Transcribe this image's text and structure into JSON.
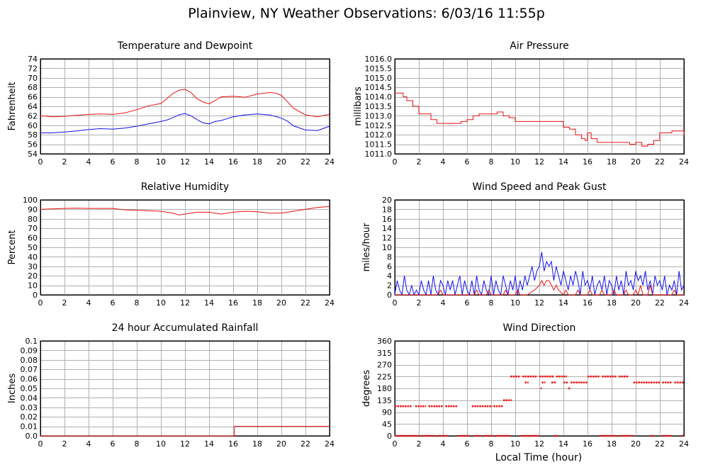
{
  "page_title": "Plainview, NY Weather Observations: 6/03/16 11:55p",
  "x_axis_label": "Local Time (hour)",
  "colors": {
    "red": "#ee1111",
    "blue": "#1111ee",
    "grid": "#b0b0b0"
  },
  "chart_data": [
    {
      "id": "temp",
      "type": "line",
      "title": "Temperature and Dewpoint",
      "ylabel": "Fahrenheit",
      "xlim": [
        0,
        24
      ],
      "ylim": [
        54,
        74
      ],
      "xticks": [
        0,
        2,
        4,
        6,
        8,
        10,
        12,
        14,
        16,
        18,
        20,
        22,
        24
      ],
      "yticks": [
        54,
        56,
        58,
        60,
        62,
        64,
        66,
        68,
        70,
        72,
        74
      ],
      "grid": true,
      "series": [
        {
          "color": "#ee1111",
          "style": "line",
          "x": [
            0,
            1,
            2,
            3,
            4,
            5,
            6,
            7,
            8,
            9,
            10,
            10.5,
            11,
            11.5,
            12,
            12.5,
            13,
            13.5,
            14,
            14.5,
            15,
            16,
            17,
            18,
            19,
            19.5,
            20,
            20.5,
            21,
            22,
            23,
            24
          ],
          "y": [
            62,
            61.8,
            61.9,
            62.1,
            62.3,
            62.4,
            62.3,
            62.6,
            63.3,
            64.1,
            64.6,
            65.6,
            66.7,
            67.4,
            67.6,
            66.9,
            65.6,
            64.9,
            64.5,
            65.2,
            66,
            66.1,
            65.9,
            66.6,
            66.9,
            66.8,
            66.3,
            65,
            63.6,
            62.2,
            61.8,
            62.3
          ]
        },
        {
          "color": "#1111ee",
          "style": "line",
          "x": [
            0,
            1,
            2,
            3,
            4,
            5,
            6,
            7,
            8,
            9,
            10,
            10.5,
            11,
            11.5,
            12,
            12.5,
            13,
            13.5,
            14,
            14.5,
            15,
            16,
            17,
            18,
            19,
            19.5,
            20,
            20.5,
            21,
            22,
            23,
            24
          ],
          "y": [
            58.4,
            58.4,
            58.6,
            58.8,
            59.1,
            59.3,
            59.2,
            59.4,
            59.8,
            60.3,
            60.8,
            61.1,
            61.6,
            62.2,
            62.5,
            62,
            61.2,
            60.5,
            60.3,
            60.8,
            61,
            61.8,
            62.2,
            62.4,
            62.2,
            61.9,
            61.5,
            60.9,
            59.9,
            59,
            58.9,
            59.8
          ]
        }
      ]
    },
    {
      "id": "pressure",
      "type": "line",
      "title": "Air Pressure",
      "ylabel": "millibars",
      "xlim": [
        0,
        24
      ],
      "ylim": [
        1011.0,
        1016.0
      ],
      "xticks": [
        0,
        2,
        4,
        6,
        8,
        10,
        12,
        14,
        16,
        18,
        20,
        22,
        24
      ],
      "yticks": [
        1011.0,
        1011.5,
        1012.0,
        1012.5,
        1013.0,
        1013.5,
        1014.0,
        1014.5,
        1015.0,
        1015.5,
        1016.0
      ],
      "ytick_labels": [
        "1011.0",
        "1011.5",
        "1012.0",
        "1012.5",
        "1013.0",
        "1013.5",
        "1014.0",
        "1014.5",
        "1015.0",
        "1015.5",
        "1016.0"
      ],
      "grid": true,
      "series": [
        {
          "color": "#ee1111",
          "style": "step",
          "x": [
            0,
            0.7,
            1,
            1.5,
            2,
            3,
            3.5,
            5,
            5.5,
            6,
            6.5,
            7,
            8,
            8.5,
            9,
            9.5,
            10,
            11,
            11.5,
            12,
            14,
            14.5,
            15,
            15.5,
            15.8,
            16,
            16.3,
            16.8,
            19,
            19.5,
            20,
            20.5,
            21,
            21.5,
            22,
            23,
            24
          ],
          "y": [
            1014.2,
            1014.0,
            1013.8,
            1013.5,
            1013.1,
            1012.8,
            1012.6,
            1012.6,
            1012.7,
            1012.8,
            1013.0,
            1013.1,
            1013.1,
            1013.2,
            1013.0,
            1012.9,
            1012.7,
            1012.7,
            1012.7,
            1012.7,
            1012.4,
            1012.3,
            1012.0,
            1011.8,
            1011.7,
            1012.1,
            1011.8,
            1011.6,
            1011.6,
            1011.5,
            1011.6,
            1011.4,
            1011.5,
            1011.7,
            1012.1,
            1012.2,
            1012.0
          ]
        }
      ]
    },
    {
      "id": "humidity",
      "type": "line",
      "title": "Relative Humidity",
      "ylabel": "Percent",
      "xlim": [
        0,
        24
      ],
      "ylim": [
        0,
        100
      ],
      "xticks": [
        0,
        2,
        4,
        6,
        8,
        10,
        12,
        14,
        16,
        18,
        20,
        22,
        24
      ],
      "yticks": [
        0,
        10,
        20,
        30,
        40,
        50,
        60,
        70,
        80,
        90,
        100
      ],
      "grid": true,
      "series": [
        {
          "color": "#ee1111",
          "style": "line",
          "x": [
            0,
            1,
            2,
            3,
            4,
            5,
            6,
            7,
            8,
            9,
            10,
            11,
            11.5,
            12,
            13,
            14,
            15,
            16,
            17,
            18,
            19,
            20,
            21,
            22,
            23,
            24
          ],
          "y": [
            90,
            90.5,
            91,
            91.2,
            91,
            91,
            91,
            89.5,
            89,
            88.5,
            88,
            86,
            84,
            85,
            87,
            87,
            85,
            87,
            88,
            87.5,
            86,
            86,
            88,
            90,
            92,
            93
          ]
        }
      ]
    },
    {
      "id": "wind",
      "type": "line",
      "title": "Wind Speed and Peak Gust",
      "ylabel": "miles/hour",
      "xlim": [
        0,
        24
      ],
      "ylim": [
        0,
        20
      ],
      "xticks": [
        0,
        2,
        4,
        6,
        8,
        10,
        12,
        14,
        16,
        18,
        20,
        22,
        24
      ],
      "yticks": [
        0,
        2,
        4,
        6,
        8,
        10,
        12,
        14,
        16,
        18,
        20
      ],
      "grid": true,
      "series": [
        {
          "color": "#1111ee",
          "style": "line",
          "x": [
            0,
            0.2,
            0.4,
            0.6,
            0.8,
            1,
            1.2,
            1.4,
            1.6,
            1.8,
            2,
            2.2,
            2.4,
            2.6,
            2.8,
            3,
            3.2,
            3.4,
            3.6,
            3.8,
            4,
            4.2,
            4.4,
            4.6,
            4.8,
            5,
            5.2,
            5.4,
            5.6,
            5.8,
            6,
            6.2,
            6.4,
            6.6,
            6.8,
            7,
            7.2,
            7.4,
            7.6,
            7.8,
            8,
            8.2,
            8.4,
            8.6,
            8.8,
            9,
            9.2,
            9.4,
            9.6,
            9.8,
            10,
            10.2,
            10.4,
            10.6,
            10.8,
            11,
            11.2,
            11.4,
            11.6,
            11.8,
            12,
            12.2,
            12.4,
            12.6,
            12.8,
            13,
            13.2,
            13.4,
            13.6,
            13.8,
            14,
            14.2,
            14.4,
            14.6,
            14.8,
            15,
            15.2,
            15.4,
            15.6,
            15.8,
            16,
            16.2,
            16.4,
            16.6,
            16.8,
            17,
            17.2,
            17.4,
            17.6,
            17.8,
            18,
            18.2,
            18.4,
            18.6,
            18.8,
            19,
            19.2,
            19.4,
            19.6,
            19.8,
            20,
            20.2,
            20.4,
            20.6,
            20.8,
            21,
            21.2,
            21.4,
            21.6,
            21.8,
            22,
            22.2,
            22.4,
            22.6,
            22.8,
            23,
            23.2,
            23.4,
            23.6,
            23.8,
            24
          ],
          "y": [
            0,
            3,
            1,
            0,
            4,
            1,
            0,
            2,
            0,
            1,
            0,
            3,
            1,
            0,
            3,
            0,
            4,
            1,
            0,
            3,
            2,
            0,
            3,
            1,
            3,
            0,
            2,
            4,
            0,
            3,
            1,
            0,
            3,
            0,
            4,
            1,
            0,
            3,
            1,
            0,
            4,
            0,
            3,
            1,
            0,
            4,
            2,
            0,
            3,
            1,
            4,
            0,
            3,
            1,
            4,
            2,
            4,
            6,
            3,
            5,
            6,
            9,
            5,
            7,
            6,
            7,
            3,
            6,
            4,
            2,
            5,
            3,
            1,
            4,
            2,
            5,
            3,
            0,
            5,
            2,
            3,
            1,
            4,
            0,
            2,
            3,
            1,
            4,
            0,
            3,
            2,
            0,
            4,
            1,
            3,
            0,
            5,
            2,
            3,
            1,
            5,
            3,
            4,
            2,
            5,
            1,
            3,
            0,
            4,
            2,
            3,
            1,
            4,
            0,
            2,
            1,
            3,
            0,
            5,
            1,
            2
          ]
        },
        {
          "color": "#ee1111",
          "style": "line",
          "x": [
            0,
            0.5,
            1,
            2,
            3,
            3.6,
            3.8,
            4,
            5,
            6,
            6.6,
            6.8,
            7,
            7.6,
            7.8,
            8,
            9,
            9.2,
            9.4,
            10,
            10.2,
            10.4,
            11,
            11.6,
            12,
            12.2,
            12.4,
            12.6,
            12.8,
            13,
            13.2,
            13.4,
            13.6,
            14,
            14.2,
            14.4,
            14.6,
            15,
            15.2,
            15.4,
            16,
            16.2,
            16.4,
            17,
            17.2,
            17.4,
            18,
            18.2,
            18.4,
            19,
            19.2,
            19.4,
            19.8,
            20,
            20.2,
            20.4,
            20.6,
            21,
            21.2,
            21.4,
            22,
            23,
            23.2,
            23.4,
            24
          ],
          "y": [
            0,
            0,
            0,
            0,
            0,
            0,
            1,
            0,
            0,
            0,
            0,
            1,
            0,
            0,
            1,
            0,
            0,
            1,
            0,
            0,
            1,
            0,
            0,
            1,
            2,
            3,
            2,
            3,
            3,
            2,
            1,
            2,
            1,
            0,
            1,
            0,
            0,
            0,
            1,
            0,
            0,
            1,
            0,
            0,
            1,
            0,
            0,
            1,
            0,
            0,
            1,
            0,
            0,
            1,
            0,
            2,
            0,
            0,
            2,
            0,
            0,
            0,
            1,
            0,
            0
          ]
        }
      ]
    },
    {
      "id": "rain",
      "type": "line",
      "title": "24 hour Accumulated Rainfall",
      "ylabel": "Inches",
      "xlim": [
        0,
        24
      ],
      "ylim": [
        0,
        0.1
      ],
      "xticks": [
        0,
        2,
        4,
        6,
        8,
        10,
        12,
        14,
        16,
        18,
        20,
        22,
        24
      ],
      "yticks": [
        0,
        0.01,
        0.02,
        0.03,
        0.04,
        0.05,
        0.06,
        0.07,
        0.08,
        0.09,
        0.1
      ],
      "ytick_labels": [
        "0.0",
        "0.01",
        "0.02",
        "0.03",
        "0.04",
        "0.05",
        "0.06",
        "0.07",
        "0.08",
        "0.09",
        "0.1"
      ],
      "grid": true,
      "series": [
        {
          "color": "#ee1111",
          "style": "step",
          "x": [
            0,
            16.1,
            24
          ],
          "y": [
            0,
            0.01,
            0.01
          ]
        }
      ]
    },
    {
      "id": "direction",
      "type": "scatter",
      "title": "Wind Direction",
      "ylabel": "degrees",
      "xlim": [
        0,
        24
      ],
      "ylim": [
        0,
        360
      ],
      "xticks": [
        0,
        2,
        4,
        6,
        8,
        10,
        12,
        14,
        16,
        18,
        20,
        22,
        24
      ],
      "yticks": [
        0,
        45,
        90,
        135,
        180,
        225,
        270,
        315,
        360
      ],
      "grid": true,
      "series": [
        {
          "color": "#ee1111",
          "style": "segments",
          "segments": [
            [
              0.0,
              1.4,
              112
            ],
            [
              1.7,
              2.6,
              112
            ],
            [
              2.8,
              4.0,
              112
            ],
            [
              4.2,
              5.2,
              112
            ],
            [
              6.4,
              8.1,
              112
            ],
            [
              8.2,
              9.0,
              112
            ],
            [
              9.0,
              9.7,
              135
            ],
            [
              9.6,
              10.4,
              225
            ],
            [
              10.6,
              11.8,
              225
            ],
            [
              12.0,
              13.2,
              225
            ],
            [
              13.4,
              14.3,
              225
            ],
            [
              16.0,
              17.0,
              225
            ],
            [
              17.2,
              18.4,
              225
            ],
            [
              18.6,
              19.4,
              225
            ],
            [
              10.8,
              11.1,
              202
            ],
            [
              12.2,
              12.5,
              202
            ],
            [
              13.0,
              13.4,
              202
            ],
            [
              14.0,
              14.4,
              202
            ],
            [
              14.6,
              16.0,
              202
            ],
            [
              19.8,
              22.0,
              202
            ],
            [
              22.2,
              23.0,
              202
            ],
            [
              23.2,
              24.0,
              202
            ],
            [
              12.1,
              12.2,
              180
            ],
            [
              14.4,
              14.6,
              180
            ],
            [
              0.0,
              2.0,
              0
            ],
            [
              2.2,
              3.4,
              0
            ],
            [
              3.6,
              4.4,
              0
            ],
            [
              5.2,
              6.2,
              0
            ],
            [
              6.6,
              7.2,
              0
            ],
            [
              7.4,
              8.2,
              0
            ],
            [
              8.4,
              9.6,
              0
            ],
            [
              10.4,
              12.0,
              0
            ],
            [
              13.2,
              13.6,
              0
            ],
            [
              17.0,
              18.4,
              0
            ],
            [
              18.6,
              19.8,
              0
            ],
            [
              21.2,
              21.6,
              0
            ],
            [
              22.2,
              23.0,
              0
            ],
            [
              23.8,
              24.0,
              0
            ]
          ]
        }
      ]
    }
  ]
}
